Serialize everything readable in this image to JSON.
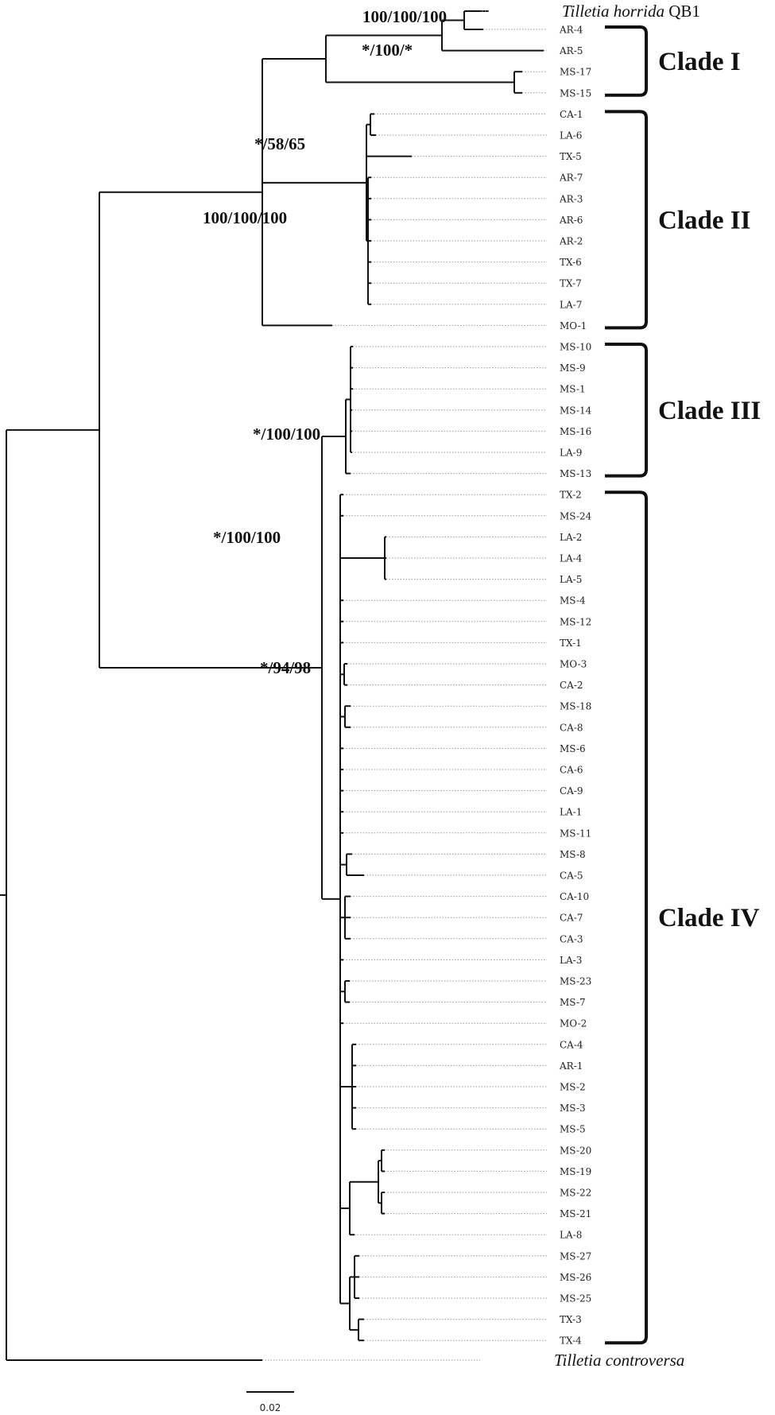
{
  "tips": [
    {
      "id": "horrida",
      "label": "QB1",
      "italic": "Tilletia horrida"
    },
    {
      "id": "AR-4",
      "label": "AR-4"
    },
    {
      "id": "AR-5",
      "label": "AR-5"
    },
    {
      "id": "MS-17",
      "label": "MS-17"
    },
    {
      "id": "MS-15",
      "label": "MS-15"
    },
    {
      "id": "CA-1",
      "label": "CA-1"
    },
    {
      "id": "LA-6",
      "label": "LA-6"
    },
    {
      "id": "TX-5",
      "label": "TX-5"
    },
    {
      "id": "AR-7",
      "label": "AR-7"
    },
    {
      "id": "AR-3",
      "label": "AR-3"
    },
    {
      "id": "AR-6",
      "label": "AR-6"
    },
    {
      "id": "AR-2",
      "label": "AR-2"
    },
    {
      "id": "TX-6",
      "label": "TX-6"
    },
    {
      "id": "TX-7",
      "label": "TX-7"
    },
    {
      "id": "LA-7",
      "label": "LA-7"
    },
    {
      "id": "MO-1",
      "label": "MO-1"
    },
    {
      "id": "MS-10",
      "label": "MS-10"
    },
    {
      "id": "MS-9",
      "label": "MS-9"
    },
    {
      "id": "MS-1",
      "label": "MS-1"
    },
    {
      "id": "MS-14",
      "label": "MS-14"
    },
    {
      "id": "MS-16",
      "label": "MS-16"
    },
    {
      "id": "LA-9",
      "label": "LA-9"
    },
    {
      "id": "MS-13",
      "label": "MS-13"
    },
    {
      "id": "TX-2",
      "label": "TX-2"
    },
    {
      "id": "MS-24",
      "label": "MS-24"
    },
    {
      "id": "LA-2",
      "label": "LA-2"
    },
    {
      "id": "LA-4",
      "label": "LA-4"
    },
    {
      "id": "LA-5",
      "label": "LA-5"
    },
    {
      "id": "MS-4",
      "label": "MS-4"
    },
    {
      "id": "MS-12",
      "label": "MS-12"
    },
    {
      "id": "TX-1",
      "label": "TX-1"
    },
    {
      "id": "MO-3",
      "label": "MO-3"
    },
    {
      "id": "CA-2",
      "label": "CA-2"
    },
    {
      "id": "MS-18",
      "label": "MS-18"
    },
    {
      "id": "CA-8",
      "label": "CA-8"
    },
    {
      "id": "MS-6",
      "label": "MS-6"
    },
    {
      "id": "CA-6",
      "label": "CA-6"
    },
    {
      "id": "CA-9",
      "label": "CA-9"
    },
    {
      "id": "LA-1",
      "label": "LA-1"
    },
    {
      "id": "MS-11",
      "label": "MS-11"
    },
    {
      "id": "MS-8",
      "label": "MS-8"
    },
    {
      "id": "CA-5",
      "label": "CA-5"
    },
    {
      "id": "CA-10",
      "label": "CA-10"
    },
    {
      "id": "CA-7",
      "label": "CA-7"
    },
    {
      "id": "CA-3",
      "label": "CA-3"
    },
    {
      "id": "LA-3",
      "label": "LA-3"
    },
    {
      "id": "MS-23",
      "label": "MS-23"
    },
    {
      "id": "MS-7",
      "label": "MS-7"
    },
    {
      "id": "MO-2",
      "label": "MO-2"
    },
    {
      "id": "CA-4",
      "label": "CA-4"
    },
    {
      "id": "AR-1",
      "label": "AR-1"
    },
    {
      "id": "MS-2",
      "label": "MS-2"
    },
    {
      "id": "MS-3",
      "label": "MS-3"
    },
    {
      "id": "MS-5",
      "label": "MS-5"
    },
    {
      "id": "MS-20",
      "label": "MS-20"
    },
    {
      "id": "MS-19",
      "label": "MS-19"
    },
    {
      "id": "MS-22",
      "label": "MS-22"
    },
    {
      "id": "MS-21",
      "label": "MS-21"
    },
    {
      "id": "LA-8",
      "label": "LA-8"
    },
    {
      "id": "MS-27",
      "label": "MS-27"
    },
    {
      "id": "MS-26",
      "label": "MS-26"
    },
    {
      "id": "MS-25",
      "label": "MS-25"
    },
    {
      "id": "TX-3",
      "label": "TX-3"
    },
    {
      "id": "TX-4",
      "label": "TX-4"
    },
    {
      "id": "controversa",
      "label": "",
      "italic": "Tilletia controversa"
    }
  ],
  "bootstrap": [
    {
      "node": "horrida-clade",
      "text": "100/100/100"
    },
    {
      "node": "clade-i-node",
      "text": "*/100/*"
    },
    {
      "node": "clade-i-ii-node",
      "text": "*/58/65"
    },
    {
      "node": "upper-node",
      "text": "100/100/100"
    },
    {
      "node": "clade-iii-node",
      "text": "*/100/100"
    },
    {
      "node": "lower-node",
      "text": "*/100/100"
    },
    {
      "node": "clade-iv-node",
      "text": "*/94/98"
    }
  ],
  "clades": [
    {
      "name": "Clade I",
      "from": "AR-4",
      "to": "MS-15"
    },
    {
      "name": "Clade II",
      "from": "CA-1",
      "to": "MO-1"
    },
    {
      "name": "Clade III",
      "from": "MS-10",
      "to": "MS-13"
    },
    {
      "name": "Clade IV",
      "from": "TX-2",
      "to": "TX-4"
    }
  ],
  "scale_bar": {
    "label": "0.02"
  },
  "colors": {
    "branch": "#111111",
    "leader": "#9a9a9a",
    "text": "#222222"
  }
}
